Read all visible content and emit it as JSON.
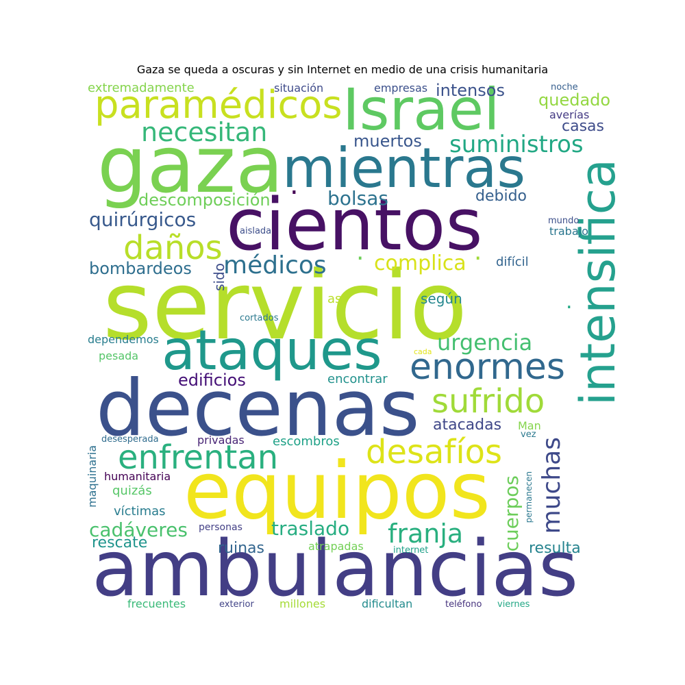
{
  "title": "Gaza se queda a oscuras y sin Internet en medio de una crisis humanitaria",
  "words": [
    {
      "id": "servicio",
      "text": "servicio",
      "color": "#b5de2b"
    },
    {
      "id": "ambulancias",
      "text": "ambulancias",
      "color": "#433e85"
    },
    {
      "id": "equipos",
      "text": "equipos",
      "color": "#f1e51d"
    },
    {
      "id": "decenas",
      "text": "decenas",
      "color": "#3b518b"
    },
    {
      "id": "cientos",
      "text": "cientos",
      "color": "#471164"
    },
    {
      "id": "gaza",
      "text": "gaza",
      "color": "#7ad151"
    },
    {
      "id": "mientras",
      "text": "mientras",
      "color": "#2a788e"
    },
    {
      "id": "intensifica",
      "text": "intensifica",
      "color": "#25a18e"
    },
    {
      "id": "israel",
      "text": "Israel",
      "color": "#5ec962"
    },
    {
      "id": "ataques",
      "text": "ataques",
      "color": "#1f988b"
    },
    {
      "id": "paramedicos",
      "text": "paramédicos",
      "color": "#c8e020"
    },
    {
      "id": "enormes",
      "text": "enormes",
      "color": "#31688e"
    },
    {
      "id": "sufrido",
      "text": "sufrido",
      "color": "#a0da39"
    },
    {
      "id": "desafios",
      "text": "desafíos",
      "color": "#dde318"
    },
    {
      "id": "enfrentan",
      "text": "enfrentan",
      "color": "#2ab07f"
    },
    {
      "id": "danos",
      "text": "daños",
      "color": "#b8de29"
    },
    {
      "id": "medicos",
      "text": "médicos",
      "color": "#2d708e"
    },
    {
      "id": "necesitan",
      "text": "necesitan",
      "color": "#35b779"
    },
    {
      "id": "suministros",
      "text": "suministros",
      "color": "#22a884"
    },
    {
      "id": "franja",
      "text": "franja",
      "color": "#29af7f"
    },
    {
      "id": "muchas",
      "text": "muchas",
      "color": "#3e4989"
    },
    {
      "id": "urgencia",
      "text": "urgencia",
      "color": "#44bf70"
    },
    {
      "id": "complica",
      "text": "complica",
      "color": "#d8e219"
    },
    {
      "id": "quirurgicos",
      "text": "quirúrgicos",
      "color": "#38598c"
    },
    {
      "id": "bolsas",
      "text": "bolsas",
      "color": "#2c728e"
    },
    {
      "id": "cuerpos",
      "text": "cuerpos",
      "color": "#6ccd5a"
    },
    {
      "id": "cadaveres",
      "text": "cadáveres",
      "color": "#4ac16d"
    },
    {
      "id": "traslado",
      "text": "traslado",
      "color": "#26ad81"
    },
    {
      "id": "edificios",
      "text": "edificios",
      "color": "#440f76"
    },
    {
      "id": "descomposicion",
      "text": "descomposición",
      "color": "#6ece58"
    },
    {
      "id": "bombardeos",
      "text": "bombardeos",
      "color": "#2e6e8e"
    },
    {
      "id": "muertos",
      "text": "muertos",
      "color": "#39568c"
    },
    {
      "id": "intensos",
      "text": "intensos",
      "color": "#3b528b"
    },
    {
      "id": "quedado",
      "text": "quedado",
      "color": "#93d741"
    },
    {
      "id": "casas",
      "text": "casas",
      "color": "#3e4c8a"
    },
    {
      "id": "debido",
      "text": "debido",
      "color": "#355f8d"
    },
    {
      "id": "atacadas",
      "text": "atacadas",
      "color": "#3f4788"
    },
    {
      "id": "resulta",
      "text": "resulta",
      "color": "#25838e"
    },
    {
      "id": "ruinas",
      "text": "ruinas",
      "color": "#32658e"
    },
    {
      "id": "rescate",
      "text": "rescate",
      "color": "#1f948c"
    },
    {
      "id": "extremadamente",
      "text": "extremadamente",
      "color": "#84d44b"
    },
    {
      "id": "situacion",
      "text": "situación",
      "color": "#3e4a89"
    },
    {
      "id": "empresas",
      "text": "empresas",
      "color": "#3c508b"
    },
    {
      "id": "noche",
      "text": "noche",
      "color": "#355e8d"
    },
    {
      "id": "averias",
      "text": "averías",
      "color": "#443a83"
    },
    {
      "id": "segun",
      "text": "según",
      "color": "#24878e"
    },
    {
      "id": "dificil",
      "text": "difícil",
      "color": "#32648e"
    },
    {
      "id": "sido",
      "text": "sido",
      "color": "#3d4d8a"
    },
    {
      "id": "asi",
      "text": "así",
      "color": "#bade28"
    },
    {
      "id": "cortados",
      "text": "cortados",
      "color": "#2a788e"
    },
    {
      "id": "dependemos",
      "text": "dependemos",
      "color": "#287d8e"
    },
    {
      "id": "pesada",
      "text": "pesada",
      "color": "#54c568"
    },
    {
      "id": "cada",
      "text": "cada",
      "color": "#e2e418"
    },
    {
      "id": "encontrar",
      "text": "encontrar",
      "color": "#21918c"
    },
    {
      "id": "aislada",
      "text": "aislada",
      "color": "#3d4e8a"
    },
    {
      "id": "mundo",
      "text": "mundo",
      "color": "#3c4f8a"
    },
    {
      "id": "trabajo",
      "text": "trabajo",
      "color": "#2a768e"
    },
    {
      "id": "escombros",
      "text": "escombros",
      "color": "#1fa187"
    },
    {
      "id": "privadas",
      "text": "privadas",
      "color": "#482475"
    },
    {
      "id": "desesperada",
      "text": "desesperada",
      "color": "#2f6c8e"
    },
    {
      "id": "man",
      "text": "Man",
      "color": "#84d44b"
    },
    {
      "id": "vez",
      "text": "vez",
      "color": "#2a788e"
    },
    {
      "id": "maquinaria",
      "text": "maquinaria",
      "color": "#2d708e"
    },
    {
      "id": "humanitaria",
      "text": "humanitaria",
      "color": "#440154"
    },
    {
      "id": "quizas",
      "text": "quizás",
      "color": "#56c667"
    },
    {
      "id": "victimas",
      "text": "víctimas",
      "color": "#287c8e"
    },
    {
      "id": "personas",
      "text": "personas",
      "color": "#423f85"
    },
    {
      "id": "permanecen",
      "text": "permanecen",
      "color": "#2a778e"
    },
    {
      "id": "atrapadas",
      "text": "atrapadas",
      "color": "#73d056"
    },
    {
      "id": "internet",
      "text": "internet",
      "color": "#1fa088"
    },
    {
      "id": "frecuentes",
      "text": "frecuentes",
      "color": "#38b977"
    },
    {
      "id": "exterior",
      "text": "exterior",
      "color": "#414487"
    },
    {
      "id": "millones",
      "text": "millones",
      "color": "#a5db36"
    },
    {
      "id": "dificultan",
      "text": "dificultan",
      "color": "#228b8d"
    },
    {
      "id": "telefono",
      "text": "teléfono",
      "color": "#46337e"
    },
    {
      "id": "viernes",
      "text": "viernes",
      "color": "#22a785"
    },
    {
      "id": "dot1",
      "text": ".",
      "color": "#440154"
    },
    {
      "id": "dot2",
      "text": ".",
      "color": "#6ece58"
    },
    {
      "id": "dot3",
      "text": ".",
      "color": "#a0da39"
    },
    {
      "id": "dot4",
      "text": ".",
      "color": "#22a884"
    }
  ]
}
